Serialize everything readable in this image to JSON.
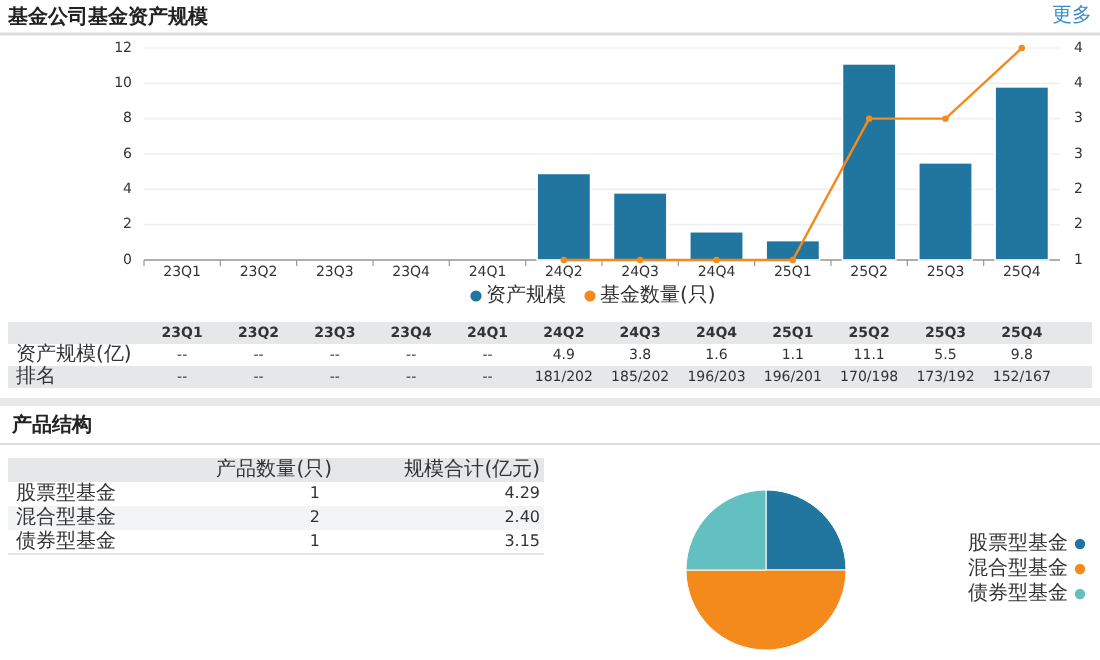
{
  "chart_data": [
    {
      "type": "bar",
      "title": "基金公司基金资产规模",
      "categories": [
        "23Q1",
        "23Q2",
        "23Q3",
        "23Q4",
        "24Q1",
        "24Q2",
        "24Q3",
        "24Q4",
        "25Q1",
        "25Q2",
        "25Q3",
        "25Q4"
      ],
      "series": [
        {
          "name": "资产规模",
          "type": "bar",
          "color": "#21769f",
          "values": [
            null,
            null,
            null,
            null,
            null,
            4.9,
            3.8,
            1.6,
            1.1,
            11.1,
            5.5,
            9.8
          ],
          "value_labels": [
            "--",
            "--",
            "--",
            "--",
            "--",
            "4.9",
            "3.8",
            "1.6",
            "1.1",
            "11.1",
            "5.5",
            "9.8"
          ]
        },
        {
          "name": "基金数量(只)",
          "type": "line",
          "axis": "y2",
          "color": "#f58a1c",
          "marker": "circle",
          "values": [
            null,
            null,
            null,
            null,
            null,
            1,
            1,
            1,
            1,
            3,
            3,
            4
          ]
        }
      ],
      "ylim": [
        0,
        12
      ],
      "yticks": [
        0,
        2,
        4,
        6,
        8,
        10,
        12
      ],
      "y2lim": [
        1,
        4
      ],
      "y2ticks": [
        1,
        {
          "value": 1.5,
          "label": "2"
        },
        2,
        {
          "value": 2.5,
          "label": "3"
        },
        3,
        {
          "value": 3.5,
          "label": "4"
        },
        4
      ],
      "grid": "y",
      "legend": "bottom",
      "annotations": [
        "更多",
        "资产规模(亿)",
        "排名",
        "--",
        "--",
        "--",
        "--",
        "--",
        "181/202",
        "185/202",
        "196/203",
        "196/201",
        "170/198",
        "173/192",
        "152/167"
      ]
    },
    {
      "type": "other",
      "title": "产品结构",
      "categories": [
        "股票型基金",
        "混合型基金",
        "债券型基金"
      ],
      "series": [
        {
          "name": "产品数量(只)",
          "values": [
            1,
            2,
            1
          ]
        },
        {
          "name": "规模合计(亿元)",
          "values": [
            4.29,
            2.4,
            3.15
          ],
          "value_labels": [
            "4.29",
            "2.40",
            "3.15"
          ]
        }
      ],
      "data_labels": true
    },
    {
      "type": "pie",
      "categories": [
        "股票型基金",
        "混合型基金",
        "债券型基金"
      ],
      "values": [
        25,
        50,
        25
      ],
      "colors": [
        "#21769f",
        "#f58a1c",
        "#63c0c0"
      ],
      "legend": "right"
    }
  ]
}
